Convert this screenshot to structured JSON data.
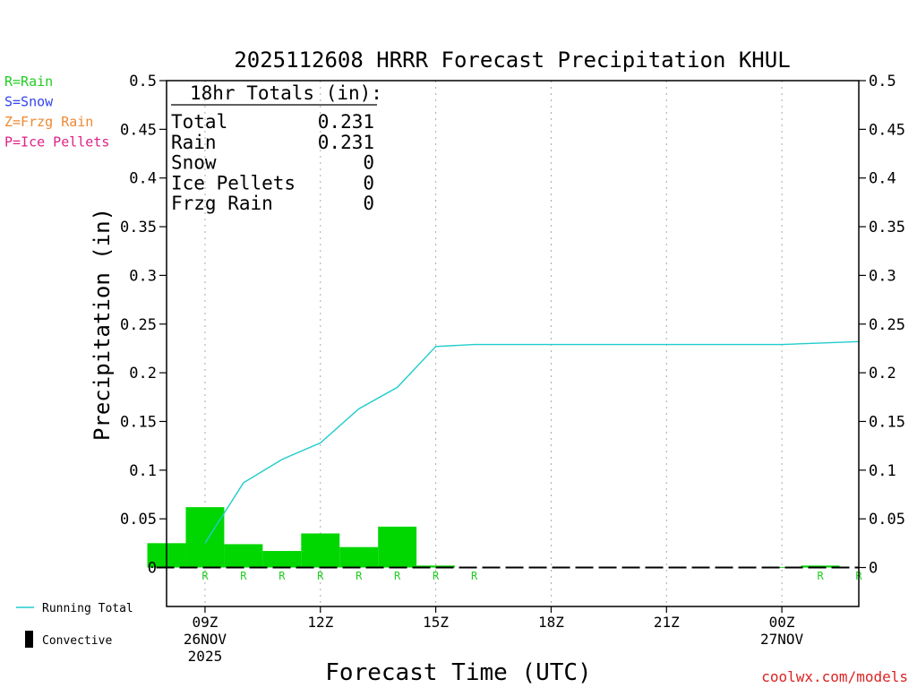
{
  "chart_data": {
    "type": "bar",
    "title": "2025112608 HRRR Forecast Precipitation KHUL",
    "xlabel": "Forecast Time (UTC)",
    "ylabel": "Precipitation (in)",
    "ylim": [
      -0.04,
      0.5
    ],
    "xlim": [
      8.0,
      26.0
    ],
    "yticks": [
      0,
      0.05,
      0.1,
      0.15,
      0.2,
      0.25,
      0.3,
      0.35,
      0.4,
      0.45,
      0.5
    ],
    "ytick_labels": [
      "0",
      "0.05",
      "0.1",
      "0.15",
      "0.2",
      "0.25",
      "0.3",
      "0.35",
      "0.4",
      "0.45",
      "0.5"
    ],
    "xticks": [
      {
        "x": 9,
        "lines": [
          "09Z",
          "26NOV",
          "2025"
        ]
      },
      {
        "x": 12,
        "lines": [
          "12Z"
        ]
      },
      {
        "x": 15,
        "lines": [
          "15Z"
        ]
      },
      {
        "x": 18,
        "lines": [
          "18Z"
        ]
      },
      {
        "x": 21,
        "lines": [
          "21Z"
        ]
      },
      {
        "x": 24,
        "lines": [
          "00Z",
          "27NOV"
        ]
      }
    ],
    "grid_x": [
      9,
      12,
      15,
      18,
      21,
      24
    ],
    "hours": [
      9,
      10,
      11,
      12,
      13,
      14,
      15,
      16,
      17,
      18,
      19,
      20,
      21,
      22,
      23,
      24,
      25,
      26
    ],
    "hourly_precip": [
      0.025,
      0.062,
      0.024,
      0.017,
      0.035,
      0.021,
      0.042,
      0.002,
      0,
      0,
      0,
      0,
      0,
      0,
      0,
      0,
      0.0005,
      0.002
    ],
    "precip_type_markers": [
      "R",
      "R",
      "R",
      "R",
      "R",
      "R",
      "R",
      "R",
      "",
      "",
      "",
      "",
      "",
      "",
      "",
      "",
      "R",
      "R"
    ],
    "running_total": {
      "x": [
        9,
        10,
        11,
        12,
        13,
        14,
        15,
        16,
        17,
        18,
        19,
        20,
        21,
        22,
        23,
        24,
        25,
        26
      ],
      "y": [
        0.025,
        0.087,
        0.111,
        0.128,
        0.163,
        0.185,
        0.227,
        0.229,
        0.229,
        0.229,
        0.229,
        0.229,
        0.229,
        0.229,
        0.229,
        0.229,
        0.2305,
        0.232
      ]
    },
    "totals_box": {
      "header": "18hr Totals (in):",
      "rows": [
        {
          "label": "Total",
          "value": "0.231"
        },
        {
          "label": "Rain",
          "value": "0.231"
        },
        {
          "label": "Snow",
          "value": "0"
        },
        {
          "label": "Ice Pellets",
          "value": "0"
        },
        {
          "label": "Frzg Rain",
          "value": "0"
        }
      ]
    },
    "type_key": [
      {
        "text": "R=Rain",
        "color": "#22cc22"
      },
      {
        "text": "S=Snow",
        "color": "#3344ee"
      },
      {
        "text": "Z=Frzg Rain",
        "color": "#ee8833"
      },
      {
        "text": "P=Ice Pellets",
        "color": "#dd2288"
      }
    ],
    "legend": [
      {
        "label": "Running Total",
        "kind": "line",
        "color": "#22cccc"
      },
      {
        "label": "Convective",
        "kind": "bar",
        "color": "#000000"
      }
    ],
    "credit": "coolwx.com/models",
    "colors": {
      "bar": "#00d600",
      "line": "#22cccc",
      "marker": "#22cc22",
      "grid": "#aaaaaa",
      "credit": "#dd2222"
    }
  }
}
